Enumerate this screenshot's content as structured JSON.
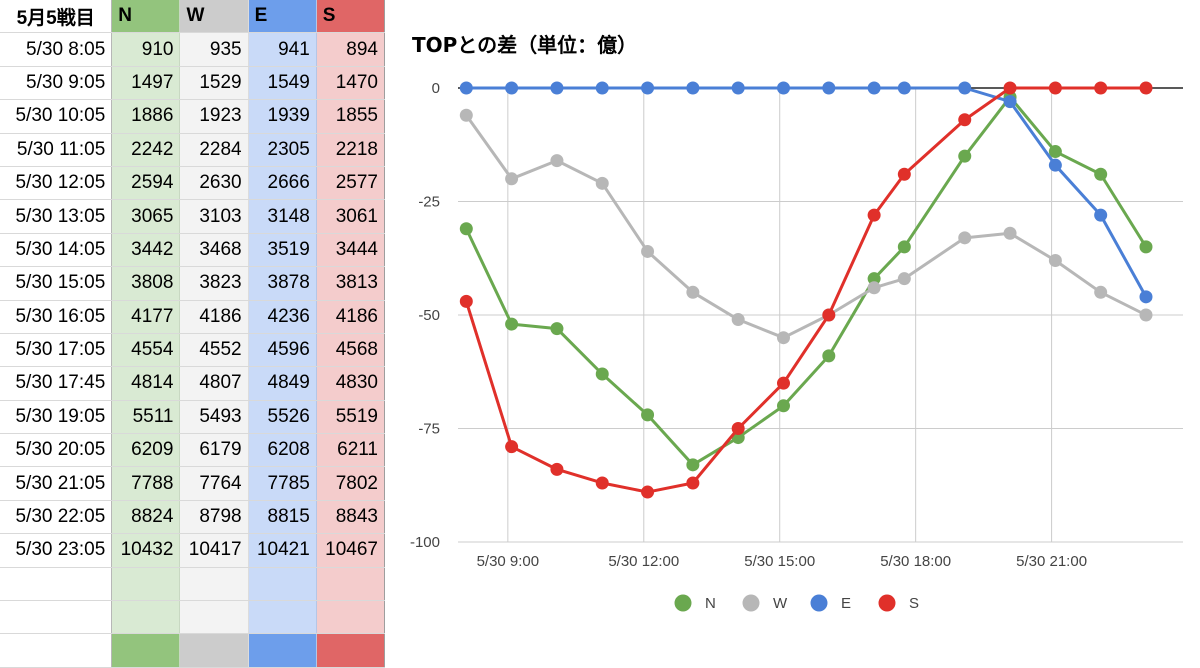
{
  "sheet": {
    "header": [
      "5月5戦目",
      "N",
      "W",
      "E",
      "S"
    ],
    "rows": [
      [
        "5/30 8:05",
        "910",
        "935",
        "941",
        "894"
      ],
      [
        "5/30 9:05",
        "1497",
        "1529",
        "1549",
        "1470"
      ],
      [
        "5/30 10:05",
        "1886",
        "1923",
        "1939",
        "1855"
      ],
      [
        "5/30 11:05",
        "2242",
        "2284",
        "2305",
        "2218"
      ],
      [
        "5/30 12:05",
        "2594",
        "2630",
        "2666",
        "2577"
      ],
      [
        "5/30 13:05",
        "3065",
        "3103",
        "3148",
        "3061"
      ],
      [
        "5/30 14:05",
        "3442",
        "3468",
        "3519",
        "3444"
      ],
      [
        "5/30 15:05",
        "3808",
        "3823",
        "3878",
        "3813"
      ],
      [
        "5/30 16:05",
        "4177",
        "4186",
        "4236",
        "4186"
      ],
      [
        "5/30 17:05",
        "4554",
        "4552",
        "4596",
        "4568"
      ],
      [
        "5/30 17:45",
        "4814",
        "4807",
        "4849",
        "4830"
      ],
      [
        "5/30 19:05",
        "5511",
        "5493",
        "5526",
        "5519"
      ],
      [
        "5/30 20:05",
        "6209",
        "6179",
        "6208",
        "6211"
      ],
      [
        "5/30 21:05",
        "7788",
        "7764",
        "7785",
        "7802"
      ],
      [
        "5/30 22:05",
        "8824",
        "8798",
        "8815",
        "8843"
      ],
      [
        "5/30 23:05",
        "10432",
        "10417",
        "10421",
        "10467"
      ],
      [
        "",
        "",
        "",
        "",
        ""
      ],
      [
        "",
        "",
        "",
        "",
        ""
      ]
    ],
    "colors": {
      "N": "#93c47d",
      "W": "#cccccc",
      "E": "#6d9eeb",
      "S": "#e06666"
    }
  },
  "chart_data": {
    "type": "line",
    "title": "TOPとの差（単位：億）",
    "x": [
      "5/30 8:05",
      "5/30 9:05",
      "5/30 10:05",
      "5/30 11:05",
      "5/30 12:05",
      "5/30 13:05",
      "5/30 14:05",
      "5/30 15:05",
      "5/30 16:05",
      "5/30 17:05",
      "5/30 17:45",
      "5/30 19:05",
      "5/30 20:05",
      "5/30 21:05",
      "5/30 22:05",
      "5/30 23:05"
    ],
    "x_hours": [
      8.0833,
      9.0833,
      10.0833,
      11.0833,
      12.0833,
      13.0833,
      14.0833,
      15.0833,
      16.0833,
      17.0833,
      17.75,
      19.0833,
      20.0833,
      21.0833,
      22.0833,
      23.0833
    ],
    "xticks": [
      {
        "hour": 9,
        "label": "5/30 9:00"
      },
      {
        "hour": 12,
        "label": "5/30 12:00"
      },
      {
        "hour": 15,
        "label": "5/30 15:00"
      },
      {
        "hour": 18,
        "label": "5/30 18:00"
      },
      {
        "hour": 21,
        "label": "5/30 21:00"
      }
    ],
    "xlim": [
      7.9,
      23.9
    ],
    "ylim": [
      -100,
      0
    ],
    "yticks": [
      0,
      -25,
      -50,
      -75,
      -100
    ],
    "grid": true,
    "legend": "bottom",
    "series": [
      {
        "name": "N",
        "color": "#6aa84f",
        "values": [
          -31,
          -52,
          -53,
          -63,
          -72,
          -83,
          -77,
          -70,
          -59,
          -42,
          -35,
          -15,
          -2,
          -14,
          -19,
          -35
        ]
      },
      {
        "name": "W",
        "color": "#b7b7b7",
        "values": [
          -6,
          -20,
          -16,
          -21,
          -36,
          -45,
          -51,
          -55,
          -50,
          -44,
          -42,
          -33,
          -32,
          -38,
          -45,
          -50
        ]
      },
      {
        "name": "E",
        "color": "#4a7fd6",
        "values": [
          0,
          0,
          0,
          0,
          0,
          0,
          0,
          0,
          0,
          0,
          0,
          0,
          -3,
          -17,
          -28,
          -46
        ]
      },
      {
        "name": "S",
        "color": "#e0302a",
        "values": [
          -47,
          -79,
          -84,
          -87,
          -89,
          -87,
          -75,
          -65,
          -50,
          -28,
          -19,
          -7,
          0,
          0,
          0,
          0
        ]
      }
    ]
  }
}
